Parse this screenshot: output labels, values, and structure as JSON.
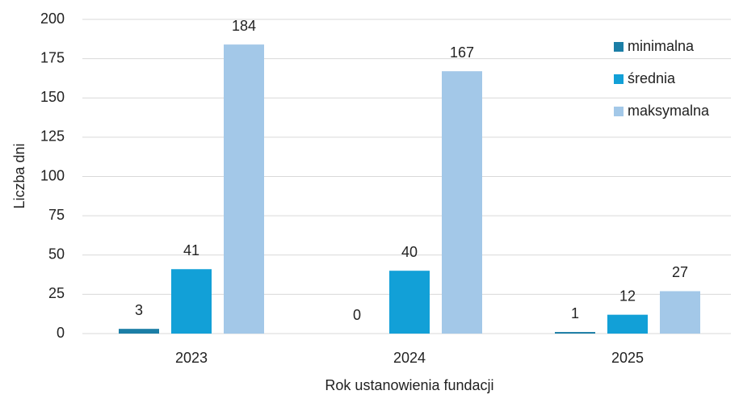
{
  "chart_data": {
    "type": "bar",
    "categories": [
      "2023",
      "2024",
      "2025"
    ],
    "series": [
      {
        "name": "minimalna",
        "color": "#1b7ea6",
        "values": [
          3,
          0,
          1
        ]
      },
      {
        "name": "średnia",
        "color": "#12a0d7",
        "values": [
          41,
          40,
          12
        ]
      },
      {
        "name": "maksymalna",
        "color": "#a3c8e8",
        "values": [
          184,
          167,
          27
        ]
      }
    ],
    "ylim": [
      0,
      200
    ],
    "yticks": [
      0,
      25,
      50,
      75,
      100,
      125,
      150,
      175,
      200
    ],
    "y_label": "Liczba dni",
    "x_label": "Rok ustanowienia fundacji",
    "grid": true,
    "legend": "upper right"
  }
}
